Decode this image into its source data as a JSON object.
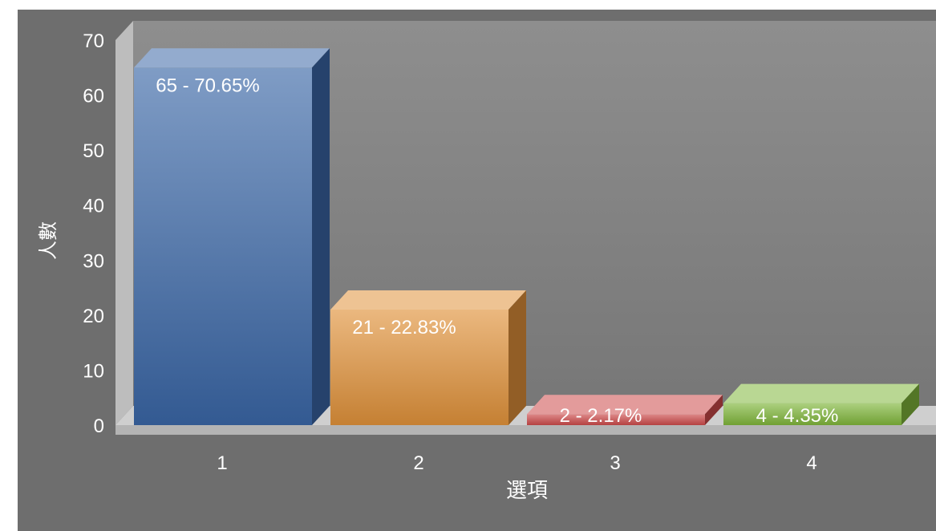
{
  "chart_data": {
    "type": "bar",
    "categories": [
      "1",
      "2",
      "3",
      "4"
    ],
    "values": [
      65,
      21,
      2,
      4
    ],
    "data_labels": [
      "65 - 70.65%",
      "21 - 22.83%",
      "2 - 2.17%",
      "4 - 4.35%"
    ],
    "colors": [
      "#3a66a6",
      "#e0913a",
      "#cc4a4a",
      "#7fb63a"
    ],
    "xlabel": "選項",
    "ylabel": "人數",
    "ylim": [
      0,
      70
    ],
    "yticks": [
      "0",
      "10",
      "20",
      "30",
      "40",
      "50",
      "60",
      "70"
    ],
    "grid": false,
    "style": "3d"
  }
}
